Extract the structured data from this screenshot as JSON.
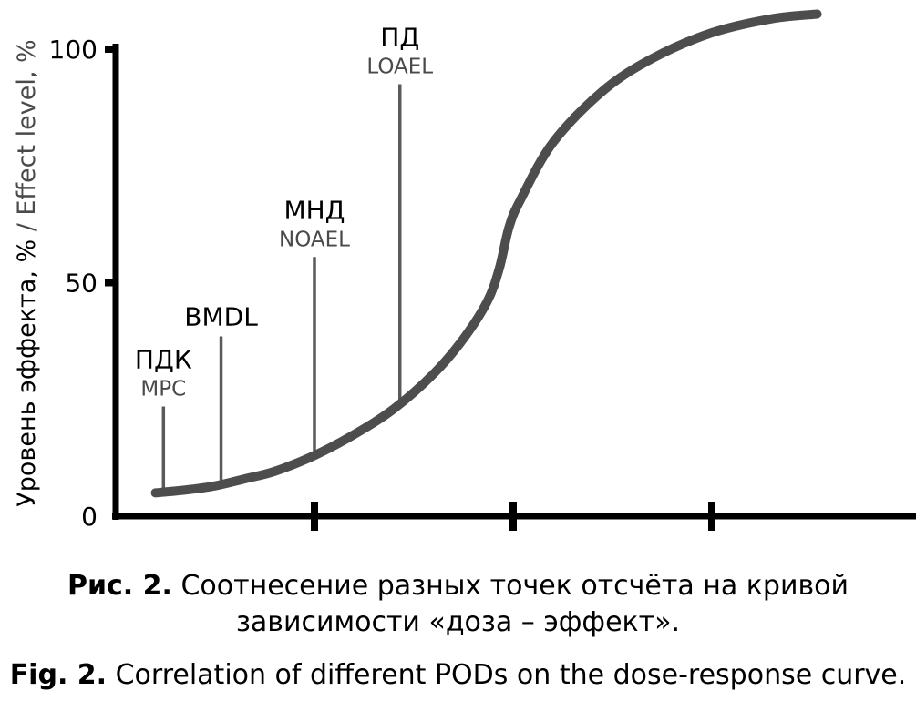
{
  "chart_data": {
    "type": "line",
    "ylabel_primary": "Уровень эффекта, %",
    "ylabel_separator": " / ",
    "ylabel_secondary": "Effect level, %",
    "ylim": [
      0,
      100
    ],
    "y_ticks": [
      {
        "value": 100,
        "label": "100"
      },
      {
        "value": 50,
        "label": "50"
      },
      {
        "value": 0,
        "label": "0"
      }
    ],
    "x_ticks": [
      1,
      2,
      3
    ],
    "series": [
      {
        "x": [
          0.2,
          0.35,
          0.5,
          0.65,
          0.8,
          1.0,
          1.2,
          1.4,
          1.6,
          1.75,
          1.87,
          1.93,
          1.98,
          2.04,
          2.2,
          2.45,
          2.7,
          3.0,
          3.3,
          3.53
        ],
        "values": [
          5,
          5.6,
          6.5,
          8,
          9.6,
          13,
          17.5,
          23,
          30.5,
          38,
          46,
          53,
          62,
          68,
          80,
          91,
          98,
          103.5,
          106.5,
          107.5
        ]
      }
    ],
    "annotations": [
      {
        "main": "ПДК",
        "sub": "MPC",
        "x": 0.24,
        "top": 23.5
      },
      {
        "main": "BMDL",
        "sub": "",
        "x": 0.53,
        "top": 38.5
      },
      {
        "main": "МНД",
        "sub": "NOAEL",
        "x": 1.0,
        "top": 55.5
      },
      {
        "main": "ПД",
        "sub": "LOAEL",
        "x": 1.43,
        "top": 92.5
      }
    ]
  },
  "caption_ru": {
    "bold": "Рис. 2.",
    "text": " Соотнесение разных точек отсчёта на кривой зависимости «доза – эффект»."
  },
  "caption_en": {
    "bold": "Fig. 2.",
    "text": " Correlation of different PODs on the dose-response curve."
  }
}
